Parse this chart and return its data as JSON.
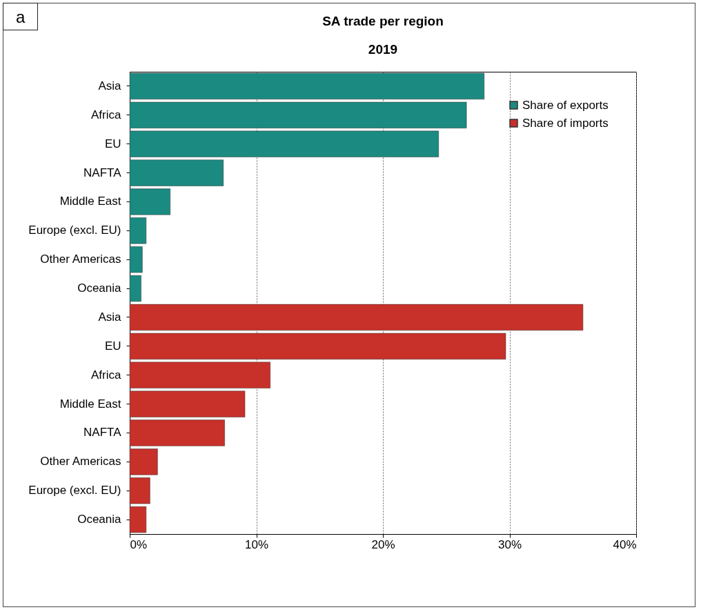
{
  "chart_data": {
    "type": "bar",
    "orientation": "horizontal",
    "title": "SA trade per region",
    "subtitle": "2019",
    "annotations": [
      "a"
    ],
    "categories": [
      "Asia",
      "Africa",
      "EU",
      "NAFTA",
      "Middle East",
      "Europe (excl. EU)",
      "Other Americas",
      "Oceania",
      "Asia",
      "EU",
      "Africa",
      "Middle East",
      "NAFTA",
      "Other Americas",
      "Europe (excl. EU)",
      "Oceania"
    ],
    "series": [
      {
        "name": "Share of exports",
        "color": "#1b8a80",
        "values": [
          28.0,
          26.6,
          24.4,
          7.4,
          3.2,
          1.3,
          1.0,
          0.9,
          null,
          null,
          null,
          null,
          null,
          null,
          null,
          null
        ]
      },
      {
        "name": "Share of imports",
        "color": "#c8302a",
        "values": [
          null,
          null,
          null,
          null,
          null,
          null,
          null,
          null,
          35.8,
          29.7,
          11.1,
          9.1,
          7.5,
          2.2,
          1.6,
          1.3
        ]
      }
    ],
    "xlim": [
      0,
      40
    ],
    "xticks": [
      {
        "value": 0,
        "label": "0%"
      },
      {
        "value": 10,
        "label": "10%"
      },
      {
        "value": 20,
        "label": "20%"
      },
      {
        "value": 30,
        "label": "30%"
      },
      {
        "value": 40,
        "label": "40%"
      }
    ],
    "grid": "x",
    "legend": "top right"
  }
}
